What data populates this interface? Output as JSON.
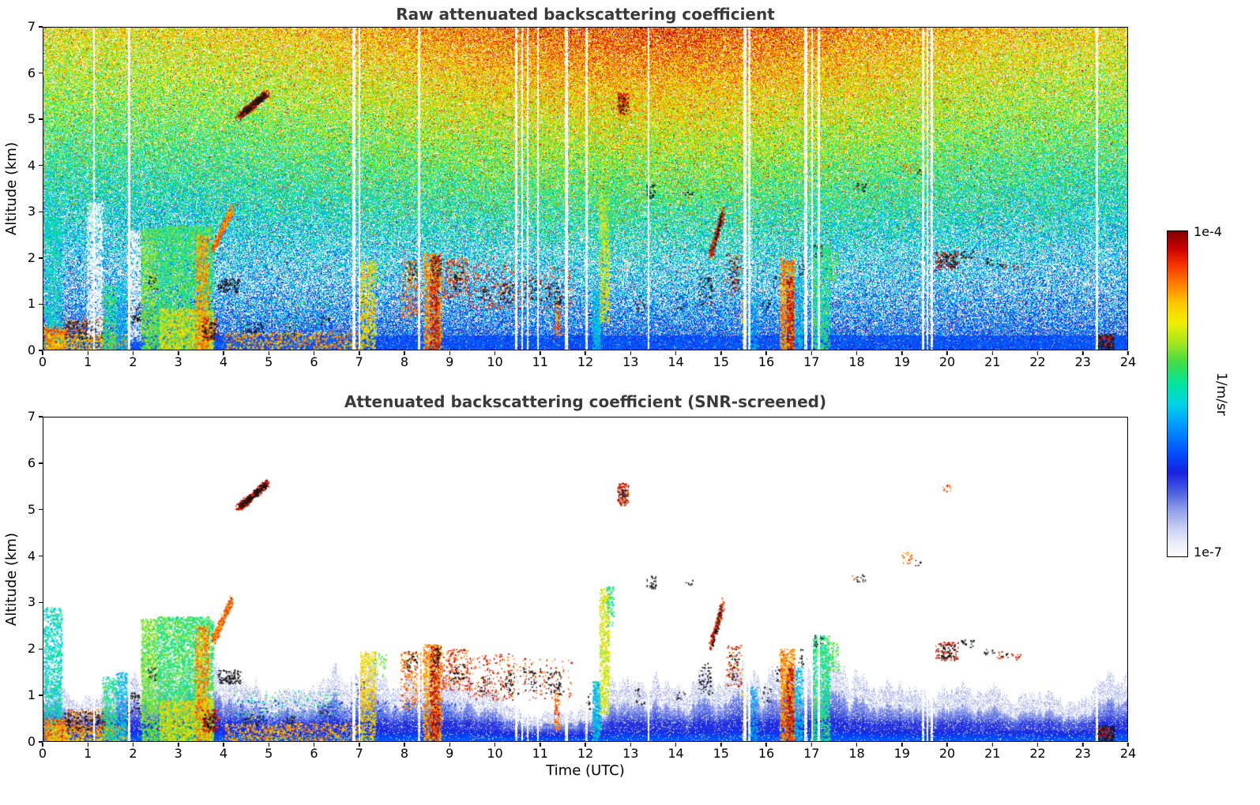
{
  "figure": {
    "background": "#ffffff",
    "title_color": "#3a3a3a"
  },
  "panels": [
    {
      "id": "raw",
      "title": "Raw attenuated backscattering coefficient",
      "ylabel": "Altitude (km)"
    },
    {
      "id": "screened",
      "title": "Attenuated backscattering coefficient (SNR-screened)",
      "ylabel": "Altitude (km)",
      "xlabel": "Time (UTC)"
    }
  ],
  "colorbar": {
    "top_label": "1e-4",
    "bottom_label": "1e-7",
    "unit": "1/m/sr"
  },
  "chart_data": {
    "type": "heatmap",
    "titles": [
      "Raw attenuated backscattering coefficient",
      "Attenuated backscattering coefficient (SNR-screened)"
    ],
    "x": {
      "label": "Time (UTC)",
      "min": 0,
      "max": 24,
      "ticks": [
        0,
        1,
        2,
        3,
        4,
        5,
        6,
        7,
        8,
        9,
        10,
        11,
        12,
        13,
        14,
        15,
        16,
        17,
        18,
        19,
        20,
        21,
        22,
        23,
        24
      ]
    },
    "y": {
      "label": "Altitude (km)",
      "min": 0,
      "max": 7,
      "ticks": [
        0,
        1,
        2,
        3,
        4,
        5,
        6,
        7
      ]
    },
    "value": {
      "label": "1/m/sr",
      "scale": "log",
      "min_label": "1e-7",
      "max_label": "1e-4"
    },
    "colormap": {
      "name": "jet-like",
      "stops": [
        [
          0.0,
          "#ffffff"
        ],
        [
          0.04,
          "#eceefa"
        ],
        [
          0.09,
          "#c9cef3"
        ],
        [
          0.14,
          "#95a3ea"
        ],
        [
          0.2,
          "#4b5fe0"
        ],
        [
          0.26,
          "#1822e0"
        ],
        [
          0.32,
          "#0050ff"
        ],
        [
          0.4,
          "#0096ff"
        ],
        [
          0.47,
          "#00d4e6"
        ],
        [
          0.53,
          "#00e6a0"
        ],
        [
          0.6,
          "#46dc46"
        ],
        [
          0.66,
          "#aae61e"
        ],
        [
          0.72,
          "#f0f000"
        ],
        [
          0.78,
          "#ffc800"
        ],
        [
          0.84,
          "#ff7d00"
        ],
        [
          0.9,
          "#f53200"
        ],
        [
          0.95,
          "#c80000"
        ],
        [
          1.0,
          "#800000"
        ]
      ]
    },
    "noise_model": {
      "raw_panel": "speckle noise: blue near surface, cyan-green mid altitudes, yellow-orange-red above 5 km, strongest around midday; dense solid blue band below 0.3 km; white gaps mostly between 1 and 2.5 km",
      "screened_panel": "white background; layered blue boundary-layer band below ~1 km with faint light-blue residue above it"
    },
    "band_profile": [
      [
        0,
        0.85
      ],
      [
        0.4,
        0.6
      ],
      [
        0.8,
        0.45
      ],
      [
        1.2,
        0.5
      ],
      [
        1.6,
        0.65
      ],
      [
        2.0,
        0.8
      ],
      [
        2.4,
        0.95
      ],
      [
        3.0,
        1.0
      ],
      [
        3.6,
        0.9
      ],
      [
        4.0,
        0.8
      ],
      [
        5,
        0.7
      ],
      [
        6,
        0.72
      ],
      [
        7,
        0.95
      ],
      [
        8,
        0.9
      ],
      [
        9,
        0.85
      ],
      [
        9.8,
        0.7
      ],
      [
        10.3,
        0.4
      ],
      [
        11,
        0.35
      ],
      [
        11.8,
        0.45
      ],
      [
        12.2,
        0.7
      ],
      [
        12.6,
        0.85
      ],
      [
        13,
        0.8
      ],
      [
        14,
        0.8
      ],
      [
        15,
        0.85
      ],
      [
        16,
        0.95
      ],
      [
        17,
        1.0
      ],
      [
        17.6,
        0.95
      ],
      [
        18,
        0.8
      ],
      [
        19,
        0.72
      ],
      [
        20,
        0.75
      ],
      [
        21,
        0.7
      ],
      [
        22,
        0.62
      ],
      [
        22.8,
        0.55
      ],
      [
        23.4,
        0.7
      ],
      [
        24,
        0.8
      ]
    ],
    "dropouts": [
      [
        1.12,
        0.05
      ],
      [
        1.9,
        0.05
      ],
      [
        6.88,
        0.07
      ],
      [
        7.0,
        0.04
      ],
      [
        8.32,
        0.04
      ],
      [
        10.47,
        0.05
      ],
      [
        10.6,
        0.04
      ],
      [
        10.72,
        0.04
      ],
      [
        10.95,
        0.04
      ],
      [
        11.58,
        0.07
      ],
      [
        12.03,
        0.05
      ],
      [
        13.4,
        0.04
      ],
      [
        15.53,
        0.06
      ],
      [
        15.63,
        0.04
      ],
      [
        16.88,
        0.07
      ],
      [
        17.02,
        0.05
      ],
      [
        17.17,
        0.06
      ],
      [
        19.48,
        0.05
      ],
      [
        19.57,
        0.04
      ],
      [
        19.67,
        0.05
      ],
      [
        23.33,
        0.05
      ]
    ],
    "features_format": "[t_start_h, t_end_h, alt_min_km, alt_max_km, colormap_value_0to1, density_0to1, opts: k=black / =slanted R=raw-only S=screened-only W=white-gap]",
    "features": [
      [
        0.0,
        0.4,
        0,
        2.9,
        0.5,
        0.5,
        ""
      ],
      [
        0.0,
        0.5,
        0,
        0.5,
        0.85,
        0.7,
        ""
      ],
      [
        0.05,
        1.9,
        0,
        0.35,
        0.78,
        0.5,
        ""
      ],
      [
        0.45,
        1.35,
        0.2,
        0.7,
        0.85,
        0.25,
        ""
      ],
      [
        0.45,
        1.35,
        0.25,
        0.65,
        1,
        0.2,
        "k"
      ],
      [
        0.95,
        1.3,
        0.3,
        3.2,
        0,
        0.5,
        "RW"
      ],
      [
        1.3,
        1.6,
        0,
        1.4,
        0.55,
        0.5,
        ""
      ],
      [
        1.6,
        1.85,
        0,
        1.5,
        0.45,
        0.45,
        ""
      ],
      [
        1.85,
        2.15,
        0.2,
        2.6,
        0,
        0.45,
        "RW"
      ],
      [
        1.85,
        2.15,
        0.6,
        1.05,
        1,
        0.18,
        "k"
      ],
      [
        2.15,
        2.5,
        0,
        2.65,
        0.62,
        0.7,
        ""
      ],
      [
        2.3,
        2.5,
        1.3,
        1.6,
        1,
        0.15,
        "k"
      ],
      [
        2.5,
        3.75,
        0,
        2.7,
        0.58,
        0.7,
        ""
      ],
      [
        2.55,
        3.75,
        0,
        0.9,
        0.72,
        0.6,
        ""
      ],
      [
        3.35,
        3.65,
        0,
        2.5,
        0.82,
        0.55,
        ""
      ],
      [
        3.5,
        3.85,
        0.2,
        0.7,
        0.95,
        0.35,
        ""
      ],
      [
        3.55,
        3.8,
        0.25,
        0.6,
        1,
        0.25,
        "k"
      ],
      [
        3.75,
        4.15,
        2.2,
        3.05,
        0.85,
        0.5,
        "/"
      ],
      [
        3.85,
        4.35,
        1.25,
        1.55,
        1,
        0.35,
        "k"
      ],
      [
        4.3,
        4.95,
        5.05,
        5.6,
        0.95,
        0.55,
        "/"
      ],
      [
        4.35,
        4.9,
        5.1,
        5.55,
        1,
        0.3,
        "/k"
      ],
      [
        4.0,
        7.0,
        0,
        0.4,
        0.8,
        0.3,
        ""
      ],
      [
        4.4,
        4.9,
        0.35,
        0.6,
        1,
        0.18,
        "k"
      ],
      [
        4.2,
        6.6,
        0.5,
        1.1,
        0.55,
        0.05,
        ""
      ],
      [
        4.2,
        9.3,
        0.35,
        0.9,
        0.3,
        0.05,
        "S"
      ],
      [
        5.3,
        5.6,
        0.3,
        0.55,
        1,
        0.12,
        "k"
      ],
      [
        6.1,
        6.35,
        0.5,
        0.8,
        1,
        0.1,
        "k"
      ],
      [
        6.85,
        7.1,
        0.9,
        1.3,
        1,
        0.1,
        "k"
      ],
      [
        7.0,
        7.35,
        0,
        1.95,
        0.75,
        0.45,
        ""
      ],
      [
        7.3,
        7.6,
        1.4,
        1.9,
        0.6,
        0.15,
        ""
      ],
      [
        7.9,
        8.35,
        0.7,
        1.95,
        0.85,
        0.22,
        ""
      ],
      [
        8.0,
        8.3,
        1.5,
        1.95,
        1,
        0.13,
        "k"
      ],
      [
        8.4,
        8.8,
        0,
        2.1,
        0.82,
        0.6,
        ""
      ],
      [
        8.55,
        8.75,
        0,
        2.05,
        0.95,
        0.4,
        ""
      ],
      [
        8.6,
        8.8,
        1.6,
        2.05,
        1,
        0.18,
        "k"
      ],
      [
        8.8,
        9.4,
        1.1,
        2.0,
        0.9,
        0.2,
        ""
      ],
      [
        9.0,
        9.3,
        1.3,
        1.7,
        1,
        0.12,
        "k"
      ],
      [
        9.4,
        10.4,
        0.9,
        1.9,
        0.9,
        0.1,
        ""
      ],
      [
        9.6,
        9.9,
        1.0,
        1.4,
        1,
        0.1,
        "k"
      ],
      [
        10.1,
        10.5,
        1.0,
        1.5,
        1,
        0.1,
        "k"
      ],
      [
        10.4,
        11.7,
        0.9,
        1.8,
        0.88,
        0.06,
        ""
      ],
      [
        10.6,
        11.0,
        1.1,
        1.6,
        1,
        0.11,
        "k"
      ],
      [
        11.1,
        11.5,
        1.0,
        1.5,
        1,
        0.1,
        "k"
      ],
      [
        11.3,
        11.42,
        0.25,
        1.05,
        0.85,
        0.45,
        ""
      ],
      [
        11.3,
        11.45,
        1.0,
        1.3,
        1,
        0.18,
        "k"
      ],
      [
        12.0,
        12.1,
        0.7,
        1.1,
        1,
        0.13,
        "k"
      ],
      [
        12.15,
        12.32,
        0,
        1.3,
        0.45,
        0.85,
        ""
      ],
      [
        12.3,
        12.52,
        0.6,
        3.3,
        0.7,
        0.55,
        ""
      ],
      [
        12.45,
        12.62,
        2.5,
        3.35,
        0.55,
        0.3,
        ""
      ],
      [
        12.7,
        12.95,
        5.1,
        5.6,
        0.93,
        0.5,
        ""
      ],
      [
        12.72,
        12.9,
        5.15,
        5.5,
        1,
        0.2,
        "k"
      ],
      [
        13.1,
        13.3,
        0.8,
        1.2,
        1,
        0.1,
        "k"
      ],
      [
        13.35,
        13.55,
        3.3,
        3.6,
        1,
        0.28,
        "k"
      ],
      [
        14.0,
        14.2,
        0.9,
        1.2,
        1,
        0.08,
        "k"
      ],
      [
        14.2,
        14.38,
        3.35,
        3.5,
        1,
        0.15,
        "k"
      ],
      [
        14.5,
        14.8,
        1.0,
        1.7,
        1,
        0.14,
        "k"
      ],
      [
        14.75,
        15.05,
        2.05,
        3.0,
        0.92,
        0.4,
        "/"
      ],
      [
        14.8,
        15.0,
        2.1,
        2.9,
        1,
        0.15,
        "/k"
      ],
      [
        15.1,
        15.45,
        1.2,
        2.1,
        0.9,
        0.13,
        ""
      ],
      [
        15.15,
        15.4,
        1.3,
        2.0,
        1,
        0.1,
        "k"
      ],
      [
        15.45,
        15.55,
        0,
        1.1,
        0.75,
        0.4,
        ""
      ],
      [
        15.6,
        15.8,
        0,
        1.2,
        0.42,
        0.4,
        ""
      ],
      [
        15.9,
        16.1,
        0.8,
        1.2,
        1,
        0.1,
        "k"
      ],
      [
        16.15,
        16.3,
        1.3,
        1.7,
        1,
        0.11,
        "k"
      ],
      [
        16.3,
        16.62,
        0,
        2.0,
        0.83,
        0.7,
        ""
      ],
      [
        16.45,
        16.6,
        0,
        1.6,
        0.95,
        0.45,
        ""
      ],
      [
        16.62,
        16.8,
        0,
        1.6,
        0.45,
        0.5,
        ""
      ],
      [
        16.7,
        16.9,
        1.6,
        2.0,
        1,
        0.12,
        "k"
      ],
      [
        17.0,
        17.4,
        0,
        2.3,
        0.55,
        0.6,
        ""
      ],
      [
        17.05,
        17.25,
        2.0,
        2.3,
        1,
        0.14,
        "k"
      ],
      [
        17.35,
        17.6,
        1.5,
        2.15,
        0.6,
        0.3,
        ""
      ],
      [
        17.9,
        18.05,
        3.5,
        3.6,
        0.9,
        0.15,
        ""
      ],
      [
        18.0,
        18.2,
        3.45,
        3.65,
        1,
        0.18,
        "k"
      ],
      [
        19.0,
        19.25,
        3.85,
        4.1,
        0.85,
        0.2,
        ""
      ],
      [
        19.3,
        19.45,
        3.8,
        3.95,
        1,
        0.12,
        "k"
      ],
      [
        19.75,
        20.25,
        1.75,
        2.15,
        0.95,
        0.25,
        ""
      ],
      [
        19.85,
        20.2,
        1.8,
        2.1,
        1,
        0.22,
        "k"
      ],
      [
        19.9,
        20.1,
        5.35,
        5.55,
        0.9,
        0.15,
        ""
      ],
      [
        20.3,
        20.6,
        2.0,
        2.2,
        1,
        0.16,
        "k"
      ],
      [
        20.8,
        21.05,
        1.85,
        2.0,
        1,
        0.16,
        "k"
      ],
      [
        21.1,
        21.35,
        1.75,
        1.95,
        0.9,
        0.12,
        ""
      ],
      [
        21.15,
        21.35,
        1.8,
        1.95,
        1,
        0.13,
        "k"
      ],
      [
        21.4,
        21.65,
        1.75,
        1.9,
        0.95,
        0.15,
        ""
      ],
      [
        23.3,
        23.7,
        0,
        0.35,
        1,
        0.6,
        "k"
      ],
      [
        23.35,
        23.65,
        0.08,
        0.3,
        0.95,
        0.3,
        ""
      ]
    ]
  }
}
